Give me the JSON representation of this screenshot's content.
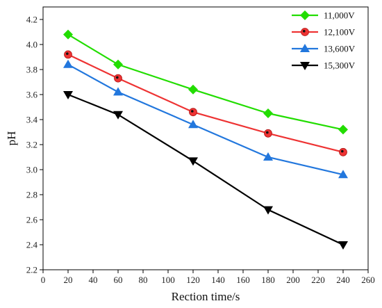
{
  "chart_data": {
    "type": "line",
    "title": "",
    "xlabel": "Rection time/s",
    "ylabel": "pH",
    "xlim": [
      0,
      260
    ],
    "ylim": [
      2.2,
      4.3
    ],
    "xticks": [
      0,
      20,
      40,
      60,
      80,
      100,
      120,
      140,
      160,
      180,
      200,
      220,
      240,
      260
    ],
    "yticks": [
      2.2,
      2.4,
      2.6,
      2.8,
      3.0,
      3.2,
      3.4,
      3.6,
      3.8,
      4.0,
      4.2
    ],
    "xtick_labels": [
      "0",
      "20",
      "40",
      "60",
      "80",
      "100",
      "120",
      "140",
      "160",
      "180",
      "200",
      "220",
      "240",
      "260"
    ],
    "ytick_labels": [
      "2.2",
      "2.4",
      "2.6",
      "2.8",
      "3.0",
      "3.2",
      "3.4",
      "3.6",
      "3.8",
      "4.0",
      "4.2"
    ],
    "grid": false,
    "legend_position": "top-right",
    "x": [
      20,
      60,
      120,
      180,
      240
    ],
    "series": [
      {
        "name": "11,000V",
        "values": [
          4.08,
          3.84,
          3.64,
          3.45,
          3.32
        ],
        "color": "#22dd00",
        "marker": "diamond"
      },
      {
        "name": "12,100V",
        "values": [
          3.92,
          3.73,
          3.46,
          3.29,
          3.14
        ],
        "color": "#ee3333",
        "marker": "circle"
      },
      {
        "name": "13,600V",
        "values": [
          3.84,
          3.62,
          3.36,
          3.1,
          2.96
        ],
        "color": "#2277dd",
        "marker": "triangle-up"
      },
      {
        "name": "15,300V",
        "values": [
          3.6,
          3.44,
          3.07,
          2.68,
          2.4
        ],
        "color": "#000000",
        "marker": "triangle-down"
      }
    ]
  }
}
